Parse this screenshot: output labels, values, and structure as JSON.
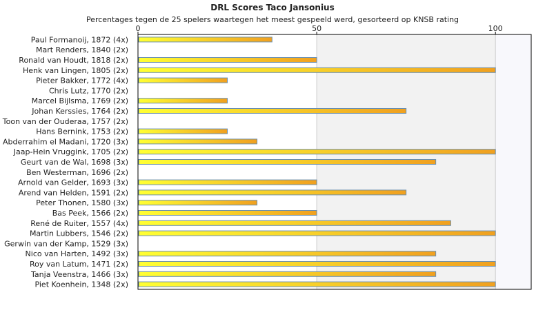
{
  "title": "DRL Scores Taco Jansonius",
  "subtitle": "Percentages tegen de 25 spelers waartegen het meest gespeeld werd, gesorteerd op KNSB rating",
  "chart_data": {
    "type": "bar",
    "orientation": "horizontal",
    "title": "DRL Scores Taco Jansonius",
    "subtitle": "Percentages tegen de 25 spelers waartegen het meest gespeeld werd, gesorteerd op KNSB rating",
    "categories": [
      "Paul Formanoij, 1872 (4x)",
      "Mart Renders, 1840 (2x)",
      "Ronald van Houdt, 1818 (2x)",
      "Henk van Lingen, 1805 (2x)",
      "Pieter Bakker, 1772 (4x)",
      "Chris Lutz, 1770 (2x)",
      "Marcel Bijlsma, 1769 (2x)",
      "Johan Kerssies, 1764 (2x)",
      "Toon van der Ouderaa, 1757 (2x)",
      "Hans Bernink, 1753 (2x)",
      "Abderrahim el Madani, 1720 (3x)",
      "Jaap-Hein Vruggink, 1705 (2x)",
      "Geurt van de Wal, 1698 (3x)",
      "Ben Westerman, 1696 (2x)",
      "Arnold van Gelder, 1693 (3x)",
      "Arend van Helden, 1591 (2x)",
      "Peter Thonen, 1580 (3x)",
      "Bas Peek, 1566 (2x)",
      "René de Ruiter, 1557 (4x)",
      "Martin Lubbers, 1546 (2x)",
      "Gerwin van der Kamp, 1529 (3x)",
      "Nico van Harten, 1492 (3x)",
      "Roy van Latum, 1471 (2x)",
      "Tanja Veenstra, 1466 (3x)",
      "Piet Koenhein, 1348 (2x)"
    ],
    "values": [
      37.5,
      0,
      50,
      100,
      25,
      0,
      25,
      75,
      0,
      25,
      33.3,
      100,
      83.3,
      0,
      50,
      75,
      33.3,
      50,
      87.5,
      100,
      0,
      83.3,
      100,
      83.3,
      100
    ],
    "xlim": [
      0,
      110
    ],
    "xticks": [
      0,
      50,
      100
    ],
    "grid": true,
    "colors": {
      "bar_start": "#ffff33",
      "bar_end": "#f0a020",
      "bar_border": "#6a8fb0",
      "band_shade": "#f2f2f2",
      "band_light": "#f8f8fc",
      "axis": "#000000",
      "grid": "#cccccc"
    }
  }
}
